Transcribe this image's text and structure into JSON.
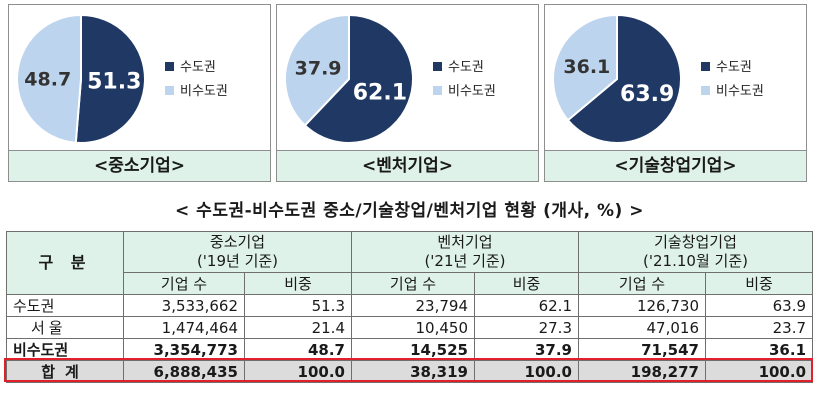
{
  "colors": {
    "capital": "#1f3864",
    "noncapital": "#bdd4ee",
    "caption_bg": "#dff2e9",
    "highlight": "#e0202a"
  },
  "chart_data": [
    {
      "type": "pie",
      "title": "<중소기업>",
      "labels": [
        "수도권",
        "비수도권"
      ],
      "values": [
        51.3,
        48.7
      ],
      "legend": "right"
    },
    {
      "type": "pie",
      "title": "<벤처기업>",
      "labels": [
        "수도권",
        "비수도권"
      ],
      "values": [
        62.1,
        37.9
      ],
      "legend": "right"
    },
    {
      "type": "pie",
      "title": "<기술창업기업>",
      "labels": [
        "수도권",
        "비수도권"
      ],
      "values": [
        63.9,
        36.1
      ],
      "legend": "right"
    }
  ],
  "table": {
    "subtitle": "< 수도권-비수도권 중소/기술창업/벤처기업 현황 (개사, %) >",
    "gubun": "구 분",
    "groups": [
      {
        "name": "중소기업",
        "basis": "('19년 기준)"
      },
      {
        "name": "벤처기업",
        "basis": "('21년 기준)"
      },
      {
        "name": "기술창업기업",
        "basis": "('21.10월 기준)"
      }
    ],
    "subheaders": {
      "count": "기업 수",
      "ratio": "비중"
    },
    "rows": [
      {
        "label": "수도권",
        "values": [
          "3,533,662",
          "51.3",
          "23,794",
          "62.1",
          "126,730",
          "63.9"
        ]
      },
      {
        "label": "서울",
        "values": [
          "1,474,464",
          "21.4",
          "10,450",
          "27.3",
          "47,016",
          "23.7"
        ]
      },
      {
        "label": "비수도권",
        "values": [
          "3,354,773",
          "48.7",
          "14,525",
          "37.9",
          "71,547",
          "36.1"
        ]
      },
      {
        "label": "합계",
        "values": [
          "6,888,435",
          "100.0",
          "38,319",
          "100.0",
          "198,277",
          "100.0"
        ]
      }
    ]
  }
}
